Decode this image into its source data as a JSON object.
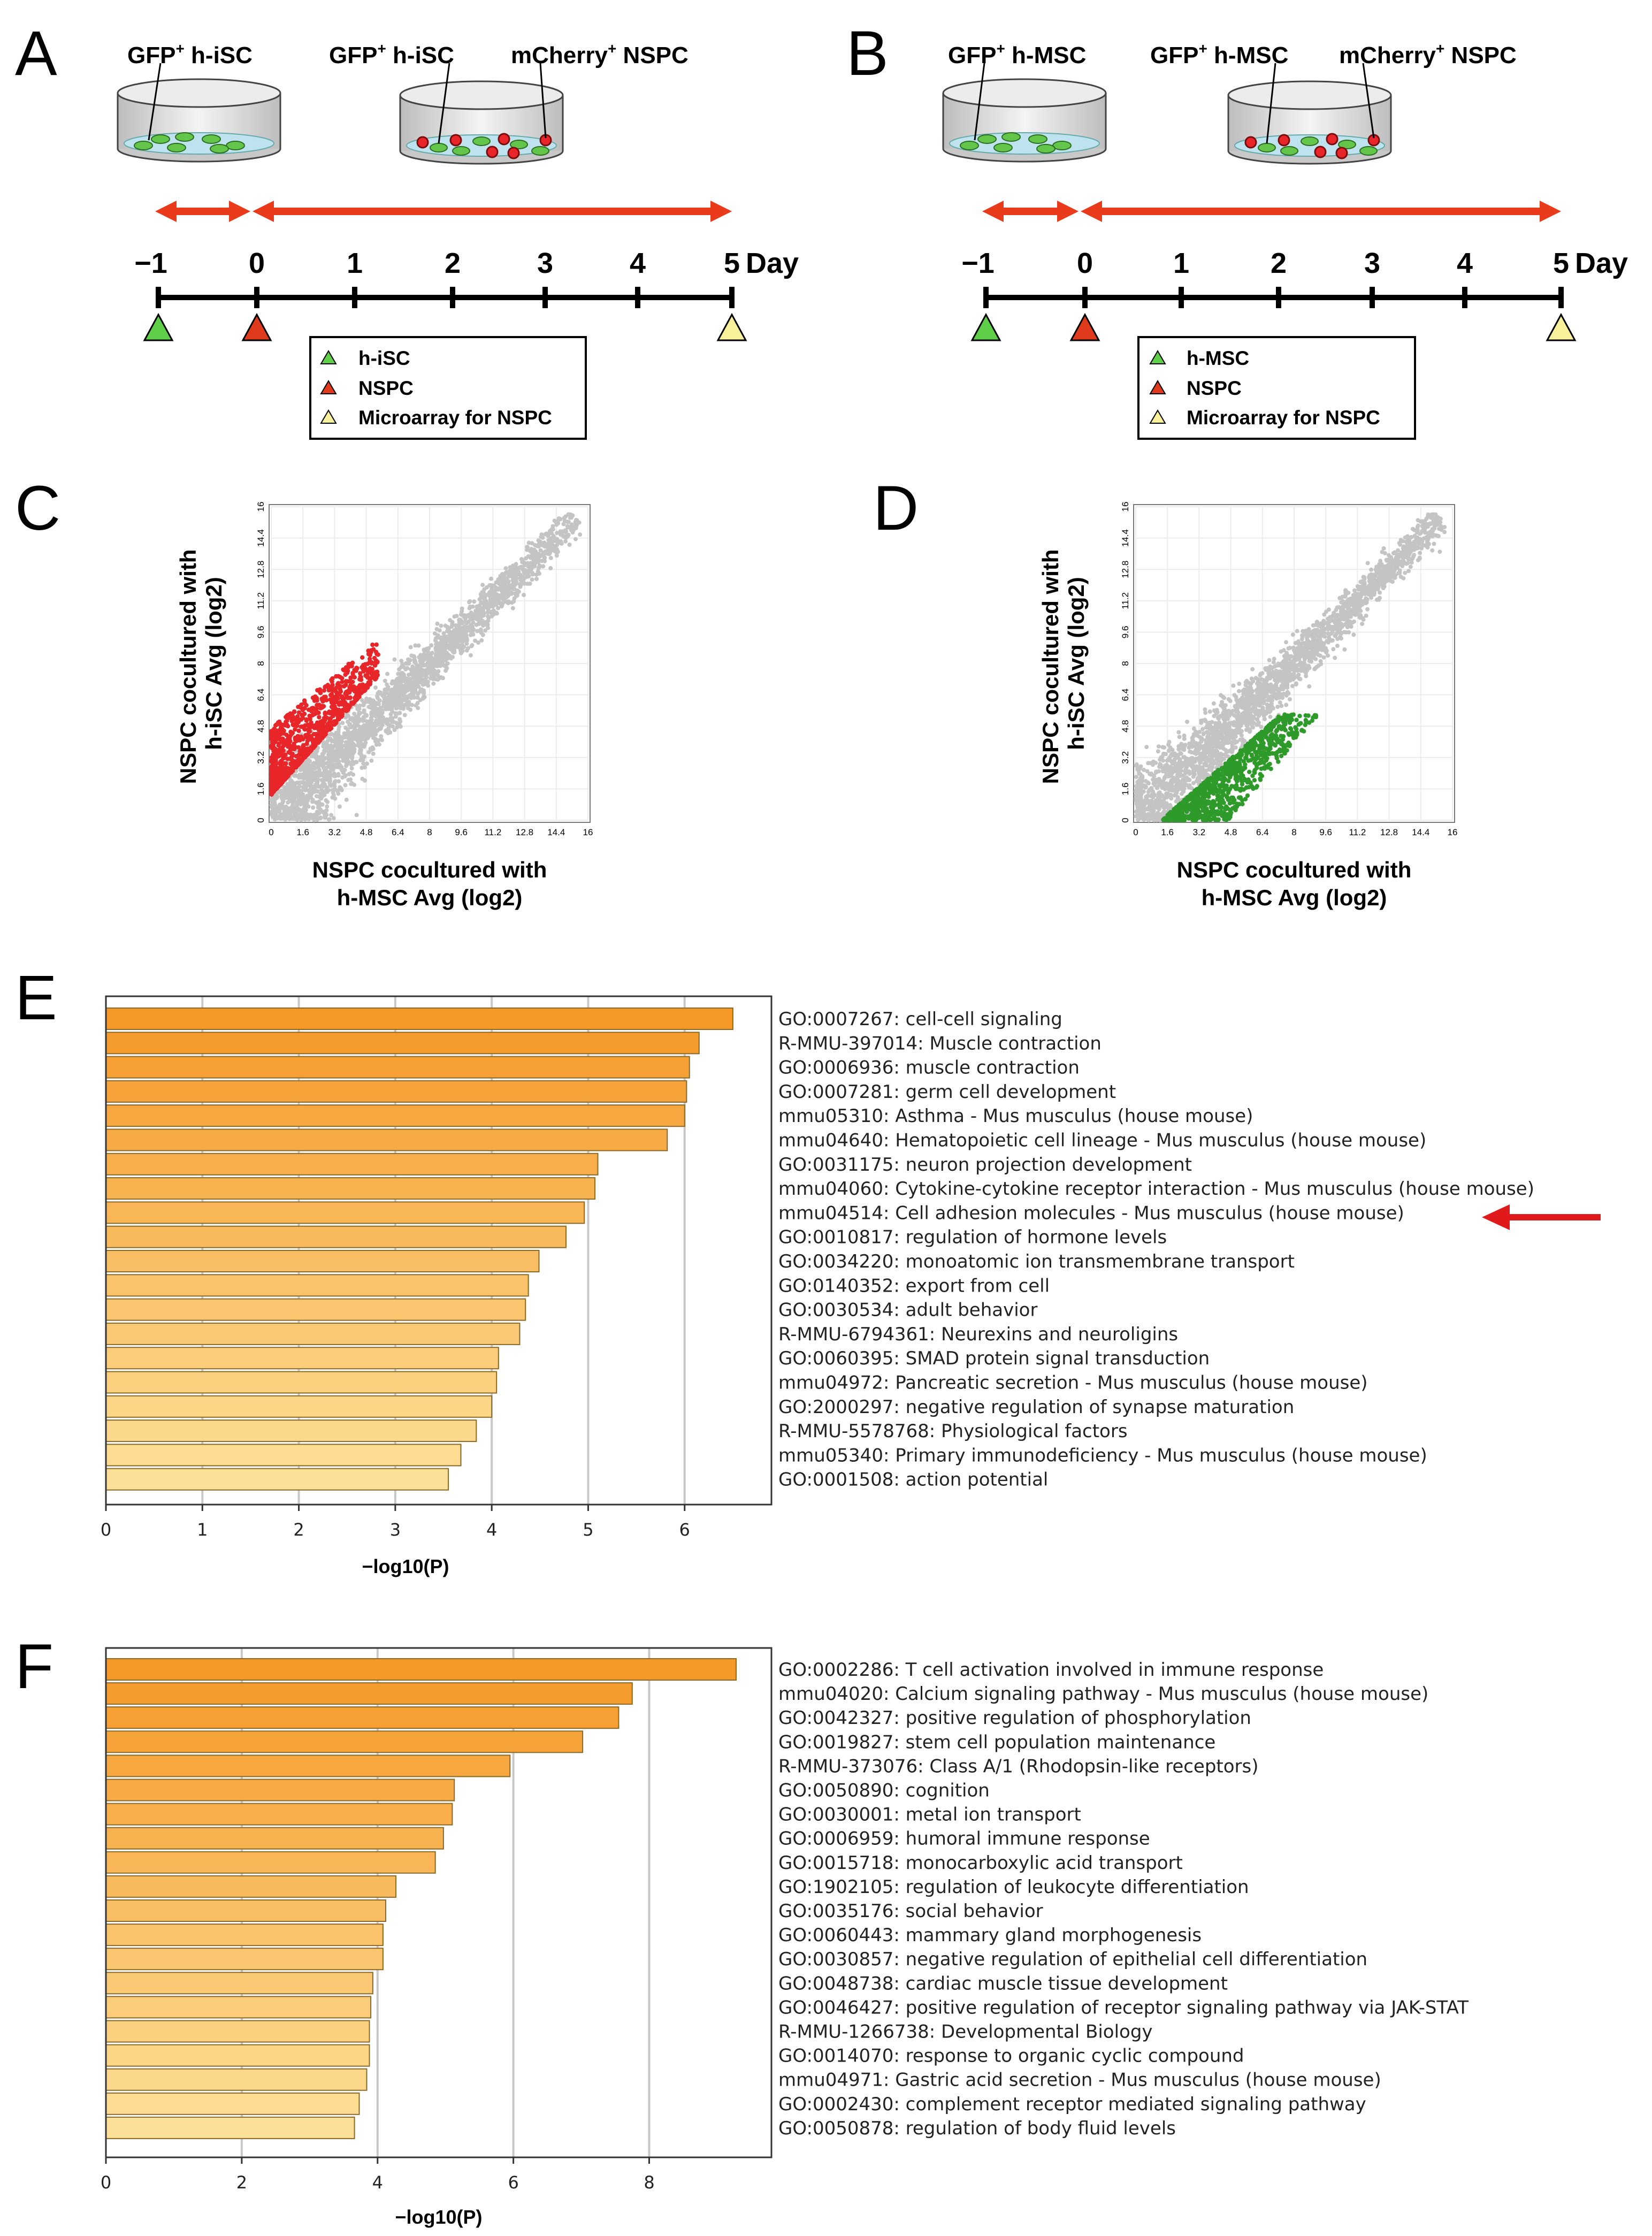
{
  "panels": {
    "A": {
      "label": "A",
      "dish1_labels": [
        {
          "t": "GFP",
          "s": "+",
          "r": " h-iSC"
        }
      ],
      "dish2_labels": [
        {
          "t": "GFP",
          "s": "+",
          "r": " h-iSC"
        },
        {
          "t": "mCherry",
          "s": "+",
          "r": " NSPC"
        }
      ],
      "day_unit": "Day",
      "ticks": [
        "−1",
        "0",
        "1",
        "2",
        "3",
        "4",
        "5"
      ],
      "legend": [
        "h-iSC",
        "NSPC",
        "Microarray  for NSPC"
      ]
    },
    "B": {
      "label": "B",
      "dish1_labels": [
        {
          "t": "GFP",
          "s": "+",
          "r": " h-MSC"
        }
      ],
      "dish2_labels": [
        {
          "t": "GFP",
          "s": "+",
          "r": " h-MSC"
        },
        {
          "t": "mCherry",
          "s": "+",
          "r": " NSPC"
        }
      ],
      "day_unit": "Day",
      "ticks": [
        "−1",
        "0",
        "1",
        "2",
        "3",
        "4",
        "5"
      ],
      "legend": [
        "h-MSC",
        "NSPC",
        "Microarray  for NSPC"
      ]
    },
    "C": {
      "label": "C",
      "ylabel_lines": [
        "NSPC cocultured with",
        "h-iSC  Avg (log2)"
      ],
      "xlabel_lines": [
        "NSPC cocultured with",
        "h-MSC  Avg (log2)"
      ],
      "ticks": [
        "0",
        "1.6",
        "3.2",
        "4.8",
        "6.4",
        "8",
        "9.6",
        "11.2",
        "12.8",
        "14.4",
        "16"
      ],
      "highlight": "upper",
      "highlight_color": "#e8262a"
    },
    "D": {
      "label": "D",
      "ylabel_lines": [
        "NSPC cocultured with",
        "h-iSC  Avg (log2)"
      ],
      "xlabel_lines": [
        "NSPC cocultured with",
        "h-MSC  Avg (log2)"
      ],
      "ticks": [
        "0",
        "1.6",
        "3.2",
        "4.8",
        "6.4",
        "8",
        "9.6",
        "11.2",
        "12.8",
        "14.4",
        "16"
      ],
      "highlight": "lower",
      "highlight_color": "#2e9a2a"
    },
    "E": {
      "label": "E",
      "xlabel": "−log10(P)",
      "xticks": [
        0,
        1,
        2,
        3,
        4,
        5,
        6
      ],
      "arrow_color": "#e0191b"
    },
    "F": {
      "label": "F",
      "xlabel": "−log10(P)",
      "xticks": [
        0,
        2,
        4,
        6,
        8
      ]
    }
  },
  "chart_data": [
    {
      "type": "bar",
      "orientation": "horizontal",
      "panel": "E",
      "xlabel": "−log10(P)",
      "xlim": [
        0,
        6.9
      ],
      "highlighted_term": "mmu04514: Cell adhesion molecules - Mus musculus (house mouse)",
      "categories": [
        "GO:0007267: cell-cell signaling",
        "R-MMU-397014: Muscle contraction",
        "GO:0006936: muscle contraction",
        "GO:0007281: germ cell development",
        "mmu05310: Asthma - Mus musculus (house mouse)",
        "mmu04640: Hematopoietic cell lineage - Mus musculus (house mouse)",
        "GO:0031175: neuron projection development",
        "mmu04060: Cytokine-cytokine receptor interaction - Mus musculus (house mouse)",
        "mmu04514: Cell adhesion molecules - Mus musculus (house mouse)",
        "GO:0010817: regulation of hormone levels",
        "GO:0034220: monoatomic ion transmembrane transport",
        "GO:0140352: export from cell",
        "GO:0030534: adult behavior",
        "R-MMU-6794361: Neurexins and neuroligins",
        "GO:0060395: SMAD protein signal transduction",
        "mmu04972: Pancreatic secretion - Mus musculus (house mouse)",
        "GO:2000297: negative regulation of synapse maturation",
        "R-MMU-5578768: Physiological factors",
        "mmu05340: Primary immunodeficiency - Mus musculus (house mouse)",
        "GO:0001508: action potential"
      ],
      "values": [
        6.5,
        6.15,
        6.05,
        6.02,
        6.0,
        5.82,
        5.1,
        5.07,
        4.96,
        4.77,
        4.49,
        4.38,
        4.35,
        4.29,
        4.07,
        4.05,
        4.0,
        3.84,
        3.68,
        3.55
      ]
    },
    {
      "type": "bar",
      "orientation": "horizontal",
      "panel": "F",
      "xlabel": "−log10(P)",
      "xlim": [
        0,
        9.8
      ],
      "categories": [
        "GO:0002286: T cell activation involved in immune response",
        "mmu04020: Calcium signaling pathway - Mus musculus (house mouse)",
        "GO:0042327: positive regulation of phosphorylation",
        "GO:0019827: stem cell population maintenance",
        "R-MMU-373076: Class A/1 (Rhodopsin-like receptors)",
        "GO:0050890: cognition",
        "GO:0030001: metal ion transport",
        "GO:0006959: humoral immune response",
        "GO:0015718: monocarboxylic acid transport",
        "GO:1902105: regulation of leukocyte differentiation",
        "GO:0035176: social behavior",
        "GO:0060443: mammary gland morphogenesis",
        "GO:0030857: negative regulation of epithelial cell differentiation",
        "GO:0048738: cardiac muscle tissue development",
        "GO:0046427: positive regulation of receptor signaling pathway via JAK-STAT",
        "R-MMU-1266738: Developmental Biology",
        "GO:0014070: response to organic cyclic compound",
        "mmu04971: Gastric acid secretion - Mus musculus (house mouse)",
        "GO:0002430: complement receptor mediated signaling pathway",
        "GO:0050878: regulation of body fluid levels"
      ],
      "values": [
        9.28,
        7.75,
        7.55,
        7.02,
        5.95,
        5.13,
        5.1,
        4.97,
        4.85,
        4.27,
        4.12,
        4.08,
        4.08,
        3.93,
        3.9,
        3.88,
        3.88,
        3.84,
        3.73,
        3.66
      ]
    }
  ]
}
